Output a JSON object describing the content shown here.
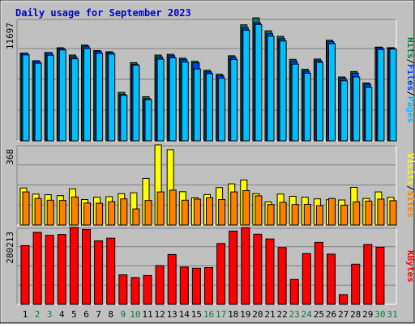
{
  "title": "Daily usage for September 2023",
  "colors": {
    "frame_bg": "#c0c0c0",
    "panel_bg": "#c0c0c0",
    "title": "#0000d0",
    "pages": "#00c0ff",
    "files": "#0040ff",
    "hits": "#008040",
    "visits": "#ffff00",
    "sites": "#ff8000",
    "kbytes": "#ff0000",
    "weekday": "#000000",
    "weekend": "#008040"
  },
  "chart_data": [
    {
      "type": "bar",
      "panel": "hits",
      "max_label": "11697",
      "ylim": [
        0,
        11697
      ],
      "legend": [
        {
          "name": "Pages",
          "color": "#00c0ff"
        },
        {
          "name": "Files",
          "color": "#0040ff"
        },
        {
          "name": "Hits",
          "color": "#008040"
        }
      ],
      "legend_separator": "/",
      "categories": [
        "1",
        "2",
        "3",
        "4",
        "5",
        "6",
        "7",
        "8",
        "9",
        "10",
        "11",
        "12",
        "13",
        "14",
        "15",
        "16",
        "17",
        "18",
        "19",
        "20",
        "21",
        "22",
        "23",
        "24",
        "25",
        "26",
        "27",
        "28",
        "29",
        "30",
        "31"
      ],
      "series": [
        {
          "name": "Hits",
          "values": [
            8350,
            7620,
            8400,
            8850,
            8160,
            9110,
            8580,
            8470,
            4610,
            7440,
            4200,
            8160,
            8230,
            7860,
            7560,
            6710,
            6330,
            8090,
            11030,
            11697,
            10460,
            9940,
            7750,
            6810,
            7780,
            9570,
            6080,
            6590,
            5500,
            8910,
            8860
          ]
        },
        {
          "name": "Files",
          "values": [
            8340,
            7580,
            8380,
            8780,
            7990,
            8990,
            8510,
            8400,
            4410,
            7280,
            4010,
            7970,
            8090,
            7720,
            7420,
            6560,
            6190,
            7950,
            10760,
            11220,
            10200,
            9710,
            7550,
            6630,
            7630,
            9420,
            5940,
            6440,
            5390,
            8870,
            8800
          ]
        },
        {
          "name": "Pages",
          "values": [
            8170,
            7380,
            8140,
            8640,
            7800,
            8770,
            8310,
            8250,
            4330,
            7190,
            3920,
            7760,
            7890,
            7480,
            6840,
            6390,
            5950,
            7730,
            10520,
            11060,
            9960,
            9490,
            7290,
            6430,
            7460,
            9240,
            5710,
            6080,
            5090,
            8690,
            8730
          ]
        }
      ]
    },
    {
      "type": "bar",
      "panel": "visits",
      "max_label": "368",
      "ylim": [
        0,
        368
      ],
      "legend": [
        {
          "name": "Sites",
          "color": "#ff8000"
        },
        {
          "name": "Visits",
          "color": "#ffff00"
        }
      ],
      "legend_separator": "/",
      "categories": [
        "1",
        "2",
        "3",
        "4",
        "5",
        "6",
        "7",
        "8",
        "9",
        "10",
        "11",
        "12",
        "13",
        "14",
        "15",
        "16",
        "17",
        "18",
        "19",
        "20",
        "21",
        "22",
        "23",
        "24",
        "25",
        "26",
        "27",
        "28",
        "29",
        "30",
        "31"
      ],
      "series": [
        {
          "name": "Visits",
          "values": [
            170,
            142,
            139,
            135,
            166,
            117,
            128,
            130,
            144,
            148,
            214,
            368,
            346,
            153,
            125,
            140,
            172,
            189,
            207,
            144,
            106,
            142,
            132,
            128,
            120,
            116,
            115,
            173,
            122,
            152,
            127
          ]
        },
        {
          "name": "Sites",
          "values": [
            152,
            122,
            114,
            113,
            129,
            101,
            100,
            107,
            120,
            74,
            113,
            152,
            160,
            114,
            119,
            125,
            117,
            152,
            158,
            134,
            94,
            104,
            94,
            95,
            89,
            122,
            91,
            106,
            110,
            119,
            112
          ]
        }
      ]
    },
    {
      "type": "bar",
      "panel": "kbytes",
      "max_label": "280213",
      "ylim": [
        0,
        280213
      ],
      "legend": [
        {
          "name": "KBytes",
          "color": "#ff0000"
        }
      ],
      "categories": [
        "1",
        "2",
        "3",
        "4",
        "5",
        "6",
        "7",
        "8",
        "9",
        "10",
        "11",
        "12",
        "13",
        "14",
        "15",
        "16",
        "17",
        "18",
        "19",
        "20",
        "21",
        "22",
        "23",
        "24",
        "25",
        "26",
        "27",
        "28",
        "29",
        "30",
        "31"
      ],
      "series": [
        {
          "name": "KBytes",
          "values": [
            213970,
            262340,
            251510,
            254860,
            280213,
            272480,
            231300,
            241220,
            107640,
            97570,
            105040,
            141070,
            181480,
            135880,
            131770,
            134150,
            221670,
            267010,
            279300,
            255740,
            238370,
            207140,
            90670,
            184870,
            226010,
            182930,
            35630,
            146450,
            217900,
            208100,
            0
          ]
        }
      ]
    }
  ],
  "x_axis": {
    "labels": [
      "1",
      "2",
      "3",
      "4",
      "5",
      "6",
      "7",
      "8",
      "9",
      "10",
      "11",
      "12",
      "13",
      "14",
      "15",
      "16",
      "17",
      "18",
      "19",
      "20",
      "21",
      "22",
      "23",
      "24",
      "25",
      "26",
      "27",
      "28",
      "29",
      "30",
      "31"
    ],
    "weekend": [
      false,
      true,
      true,
      false,
      false,
      false,
      false,
      false,
      true,
      true,
      false,
      false,
      false,
      false,
      false,
      true,
      true,
      false,
      false,
      false,
      false,
      false,
      true,
      true,
      false,
      false,
      false,
      false,
      false,
      true,
      true
    ]
  }
}
